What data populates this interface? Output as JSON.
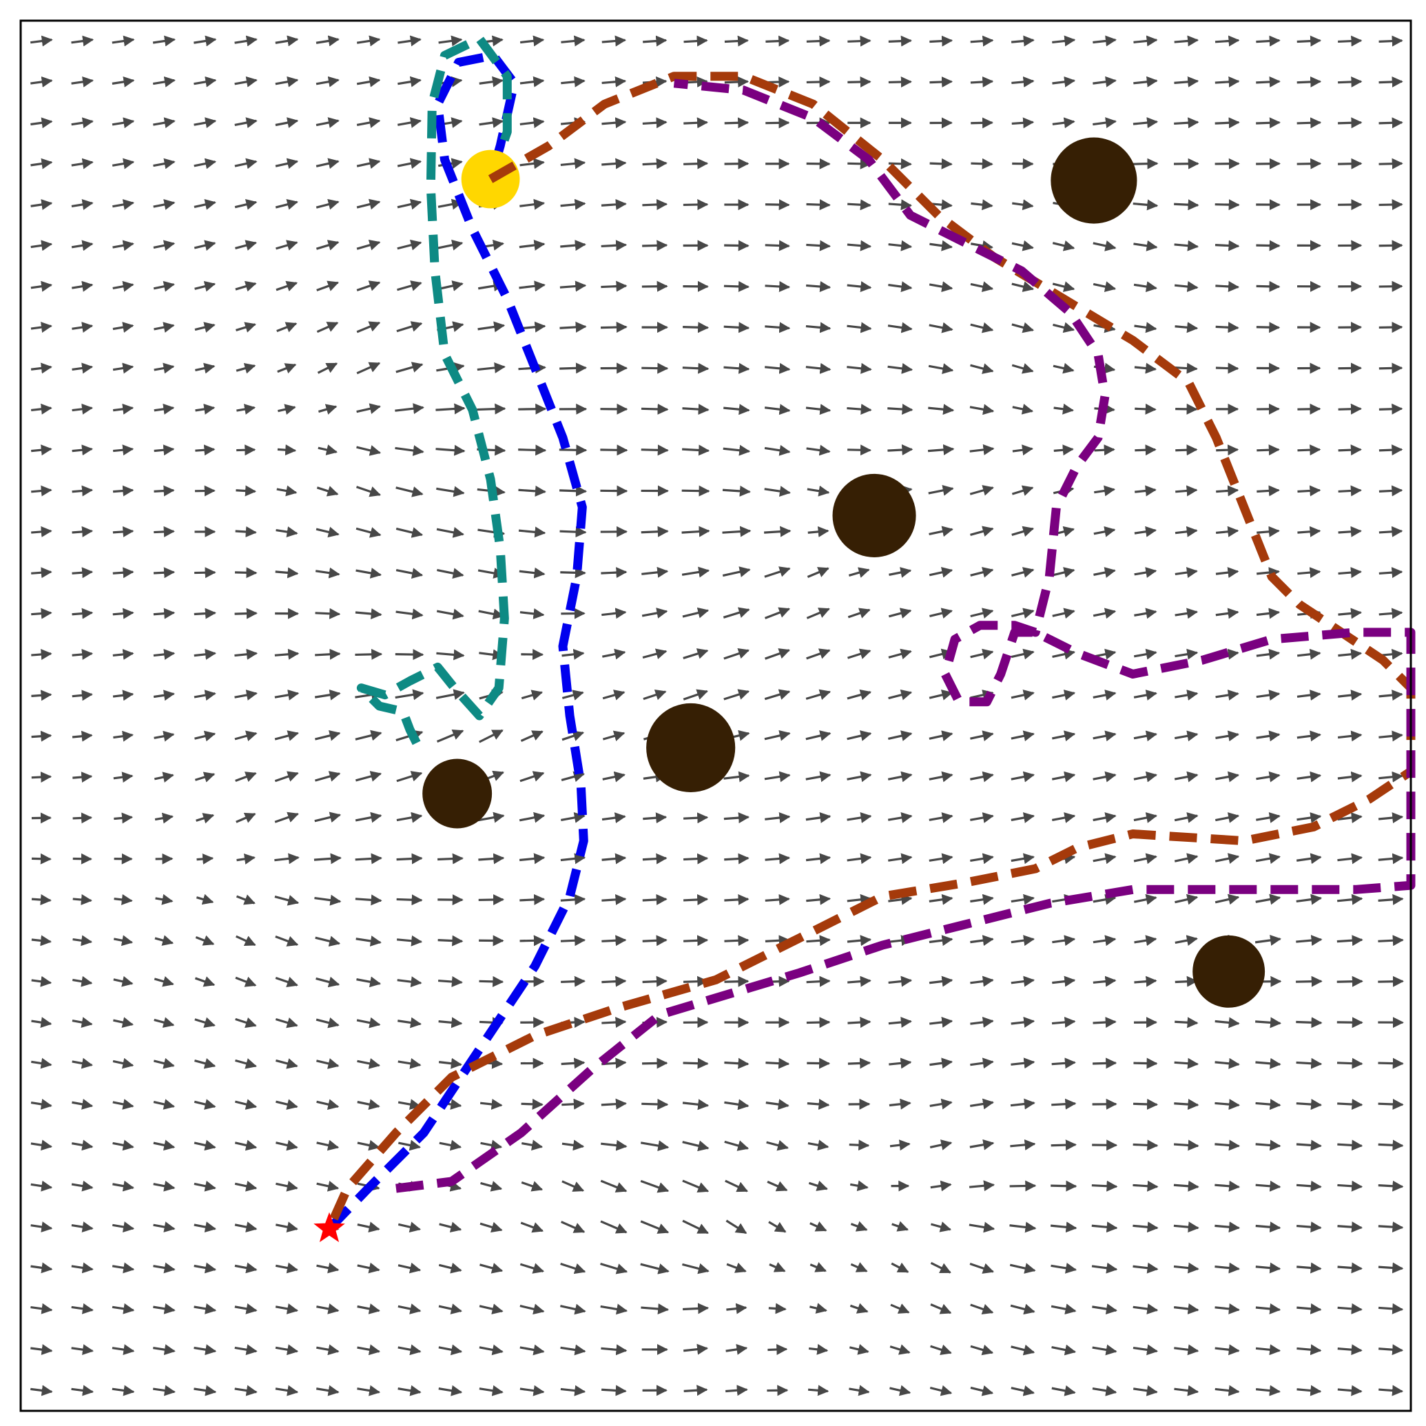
{
  "title": "",
  "colors": {
    "background": "#ffffff",
    "frame": "#000000",
    "arrow": "#474747",
    "obstacle": "#361f04",
    "goal": "#ffd700",
    "start": "#ff0000"
  },
  "chart_data": {
    "type": "vector-field",
    "xlim": [
      0,
      1
    ],
    "ylim": [
      0,
      1
    ],
    "grid": false,
    "legend": "none",
    "field": {
      "grid_size": 34,
      "base_direction": "+x",
      "sinks": [
        {
          "x": 0.5,
          "y": 0.1,
          "strength": 0.04
        },
        {
          "x": 0.56,
          "y": 0.63,
          "strength": 0.035
        },
        {
          "x": 0.33,
          "y": 0.52,
          "strength": 0.035
        },
        {
          "x": 0.7,
          "y": 0.7,
          "strength": 0.025
        }
      ],
      "sources": [
        {
          "x": 0.18,
          "y": 0.39,
          "strength": 0.035
        },
        {
          "x": 0.25,
          "y": 0.71,
          "strength": 0.04
        },
        {
          "x": 0.67,
          "y": 0.14,
          "strength": 0.03
        },
        {
          "x": 0.42,
          "y": 0.18,
          "strength": 0.03
        }
      ]
    },
    "obstacles": [
      {
        "name": "obstacle-top-right",
        "x": 0.772,
        "y": 0.885,
        "r": 0.031
      },
      {
        "name": "obstacle-center",
        "x": 0.614,
        "y": 0.644,
        "r": 0.03
      },
      {
        "name": "obstacle-mid",
        "x": 0.482,
        "y": 0.477,
        "r": 0.032
      },
      {
        "name": "obstacle-left",
        "x": 0.314,
        "y": 0.444,
        "r": 0.025
      },
      {
        "name": "obstacle-lower-right",
        "x": 0.869,
        "y": 0.316,
        "r": 0.026
      }
    ],
    "goal": {
      "x": 0.338,
      "y": 0.886,
      "r": 0.021
    },
    "start": {
      "x": 0.222,
      "y": 0.131
    },
    "series": [
      {
        "color": "#0000ee",
        "points": [
          [
            0.222,
            0.131
          ],
          [
            0.25,
            0.16
          ],
          [
            0.29,
            0.2
          ],
          [
            0.33,
            0.26
          ],
          [
            0.37,
            0.32
          ],
          [
            0.395,
            0.37
          ],
          [
            0.405,
            0.41
          ],
          [
            0.403,
            0.45
          ],
          [
            0.395,
            0.5
          ],
          [
            0.39,
            0.55
          ],
          [
            0.4,
            0.6
          ],
          [
            0.404,
            0.65
          ],
          [
            0.39,
            0.7
          ],
          [
            0.37,
            0.75
          ],
          [
            0.35,
            0.8
          ],
          [
            0.325,
            0.85
          ],
          [
            0.305,
            0.9
          ],
          [
            0.3,
            0.94
          ],
          [
            0.315,
            0.97
          ],
          [
            0.34,
            0.975
          ],
          [
            0.355,
            0.955
          ],
          [
            0.345,
            0.91
          ],
          [
            0.338,
            0.886
          ]
        ]
      },
      {
        "color": "#0e8a84",
        "points": [
          [
            0.338,
            0.886
          ],
          [
            0.35,
            0.92
          ],
          [
            0.35,
            0.96
          ],
          [
            0.33,
            0.987
          ],
          [
            0.305,
            0.975
          ],
          [
            0.296,
            0.94
          ],
          [
            0.295,
            0.88
          ],
          [
            0.298,
            0.82
          ],
          [
            0.305,
            0.76
          ],
          [
            0.325,
            0.72
          ],
          [
            0.338,
            0.67
          ],
          [
            0.345,
            0.62
          ],
          [
            0.348,
            0.57
          ],
          [
            0.344,
            0.52
          ],
          [
            0.33,
            0.5
          ],
          [
            0.312,
            0.52
          ],
          [
            0.3,
            0.535
          ],
          [
            0.28,
            0.525
          ],
          [
            0.262,
            0.515
          ],
          [
            0.245,
            0.52
          ],
          [
            0.258,
            0.507
          ],
          [
            0.275,
            0.503
          ],
          [
            0.28,
            0.49
          ],
          [
            0.285,
            0.48
          ]
        ]
      },
      {
        "color": "#a53a0b",
        "points": [
          [
            0.338,
            0.886
          ],
          [
            0.38,
            0.91
          ],
          [
            0.42,
            0.94
          ],
          [
            0.47,
            0.96
          ],
          [
            0.52,
            0.96
          ],
          [
            0.57,
            0.94
          ],
          [
            0.62,
            0.9
          ],
          [
            0.66,
            0.86
          ],
          [
            0.7,
            0.83
          ],
          [
            0.75,
            0.8
          ],
          [
            0.8,
            0.77
          ],
          [
            0.84,
            0.74
          ],
          [
            0.86,
            0.7
          ],
          [
            0.88,
            0.65
          ],
          [
            0.9,
            0.6
          ],
          [
            0.92,
            0.58
          ],
          [
            0.95,
            0.56
          ],
          [
            0.98,
            0.54
          ],
          [
            1.0,
            0.52
          ],
          [
            1.0,
            0.46
          ],
          [
            0.97,
            0.44
          ],
          [
            0.93,
            0.42
          ],
          [
            0.88,
            0.41
          ],
          [
            0.8,
            0.415
          ],
          [
            0.76,
            0.405
          ],
          [
            0.73,
            0.39
          ],
          [
            0.68,
            0.38
          ],
          [
            0.62,
            0.37
          ],
          [
            0.56,
            0.34
          ],
          [
            0.5,
            0.31
          ],
          [
            0.43,
            0.29
          ],
          [
            0.37,
            0.27
          ],
          [
            0.31,
            0.24
          ],
          [
            0.27,
            0.2
          ],
          [
            0.235,
            0.16
          ],
          [
            0.222,
            0.131
          ]
        ]
      },
      {
        "color": "#7a0080",
        "points": [
          [
            0.27,
            0.16
          ],
          [
            0.31,
            0.165
          ],
          [
            0.36,
            0.2
          ],
          [
            0.41,
            0.245
          ],
          [
            0.46,
            0.285
          ],
          [
            0.51,
            0.3
          ],
          [
            0.56,
            0.315
          ],
          [
            0.62,
            0.335
          ],
          [
            0.68,
            0.35
          ],
          [
            0.74,
            0.365
          ],
          [
            0.8,
            0.375
          ],
          [
            0.86,
            0.375
          ],
          [
            0.92,
            0.375
          ],
          [
            0.96,
            0.375
          ],
          [
            1.0,
            0.378
          ],
          [
            1.0,
            0.56
          ],
          [
            0.96,
            0.56
          ],
          [
            0.9,
            0.555
          ],
          [
            0.85,
            0.54
          ],
          [
            0.8,
            0.53
          ],
          [
            0.76,
            0.545
          ],
          [
            0.73,
            0.56
          ],
          [
            0.715,
            0.56
          ],
          [
            0.705,
            0.53
          ],
          [
            0.695,
            0.51
          ],
          [
            0.675,
            0.51
          ],
          [
            0.665,
            0.53
          ],
          [
            0.672,
            0.555
          ],
          [
            0.69,
            0.565
          ],
          [
            0.715,
            0.565
          ],
          [
            0.73,
            0.56
          ],
          [
            0.74,
            0.6
          ],
          [
            0.745,
            0.65
          ],
          [
            0.76,
            0.68
          ],
          [
            0.775,
            0.7
          ],
          [
            0.78,
            0.73
          ],
          [
            0.775,
            0.76
          ],
          [
            0.755,
            0.79
          ],
          [
            0.72,
            0.82
          ],
          [
            0.68,
            0.84
          ],
          [
            0.64,
            0.86
          ],
          [
            0.61,
            0.9
          ],
          [
            0.57,
            0.93
          ],
          [
            0.52,
            0.95
          ],
          [
            0.47,
            0.955
          ]
        ]
      }
    ]
  }
}
